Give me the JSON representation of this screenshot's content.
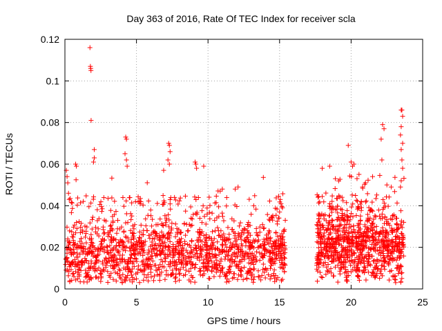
{
  "chart_data": {
    "type": "scatter",
    "title": "Day 363 of 2016, Rate Of TEC Index for receiver scla",
    "xlabel": "GPS time / hours",
    "ylabel": "ROTI / TECUs",
    "xlim": [
      0,
      25
    ],
    "ylim": [
      0,
      0.12
    ],
    "xticks": [
      0,
      5,
      10,
      15,
      20,
      25
    ],
    "yticks": [
      0,
      0.02,
      0.04,
      0.06,
      0.08,
      0.1,
      0.12
    ],
    "xtick_labels": [
      "0",
      "5",
      "10",
      "15",
      "20",
      "25"
    ],
    "ytick_labels": [
      "0",
      "0.02",
      "0.04",
      "0.06",
      "0.08",
      "0.1",
      "0.12"
    ],
    "grid": true,
    "marker": "+",
    "color": "#ff0000",
    "series": [
      {
        "name": "ROTI",
        "points": [
          [
            1.75,
            0.116
          ],
          [
            1.78,
            0.107
          ],
          [
            1.8,
            0.106
          ],
          [
            1.82,
            0.105
          ],
          [
            1.83,
            0.081
          ],
          [
            2.05,
            0.067
          ],
          [
            2.05,
            0.063
          ],
          [
            2.0,
            0.061
          ],
          [
            4.25,
            0.073
          ],
          [
            4.3,
            0.072
          ],
          [
            4.2,
            0.065
          ],
          [
            4.3,
            0.062
          ],
          [
            4.35,
            0.059
          ],
          [
            7.25,
            0.07
          ],
          [
            7.3,
            0.069
          ],
          [
            7.35,
            0.066
          ],
          [
            7.2,
            0.062
          ],
          [
            7.3,
            0.06
          ],
          [
            6.9,
            0.057
          ],
          [
            9.1,
            0.061
          ],
          [
            9.15,
            0.06
          ],
          [
            9.2,
            0.058
          ],
          [
            0.1,
            0.057
          ],
          [
            0.15,
            0.054
          ],
          [
            0.2,
            0.051
          ],
          [
            0.25,
            0.046
          ],
          [
            0.3,
            0.043
          ],
          [
            0.75,
            0.06
          ],
          [
            0.8,
            0.059
          ],
          [
            9.7,
            0.059
          ],
          [
            10.85,
            0.047
          ],
          [
            11.0,
            0.048
          ],
          [
            11.9,
            0.048
          ],
          [
            12.1,
            0.049
          ],
          [
            15.05,
            0.043
          ],
          [
            15.1,
            0.041
          ],
          [
            15.2,
            0.039
          ],
          [
            15.0,
            0.037
          ],
          [
            18.5,
            0.059
          ],
          [
            18.9,
            0.053
          ],
          [
            19.8,
            0.069
          ],
          [
            20.0,
            0.061
          ],
          [
            20.1,
            0.059
          ],
          [
            20.2,
            0.06
          ],
          [
            22.2,
            0.079
          ],
          [
            22.3,
            0.077
          ],
          [
            22.1,
            0.072
          ],
          [
            22.15,
            0.062
          ],
          [
            23.5,
            0.086
          ],
          [
            23.55,
            0.086
          ],
          [
            23.6,
            0.083
          ],
          [
            23.5,
            0.078
          ],
          [
            23.45,
            0.074
          ],
          [
            23.6,
            0.07
          ],
          [
            23.5,
            0.067
          ],
          [
            23.55,
            0.062
          ],
          [
            23.6,
            0.058
          ],
          [
            23.5,
            0.052
          ],
          [
            23.45,
            0.049
          ],
          [
            21.0,
            0.051
          ],
          [
            21.5,
            0.054
          ],
          [
            20.8,
            0.049
          ],
          [
            22.5,
            0.05
          ],
          [
            22.8,
            0.049
          ]
        ]
      }
    ],
    "generated_cluster": {
      "description": "dense ROTI values from 0 to ~15.4 h and ~17.6 to ~23.7 h",
      "segments": [
        {
          "x_start": 0.0,
          "x_end": 15.4,
          "y_center": 0.016,
          "y_spread": 0.012,
          "spike_max": 0.055,
          "count": 1500
        },
        {
          "x_start": 17.6,
          "x_end": 23.7,
          "y_center": 0.02,
          "y_spread": 0.014,
          "spike_max": 0.058,
          "count": 900
        }
      ]
    }
  }
}
